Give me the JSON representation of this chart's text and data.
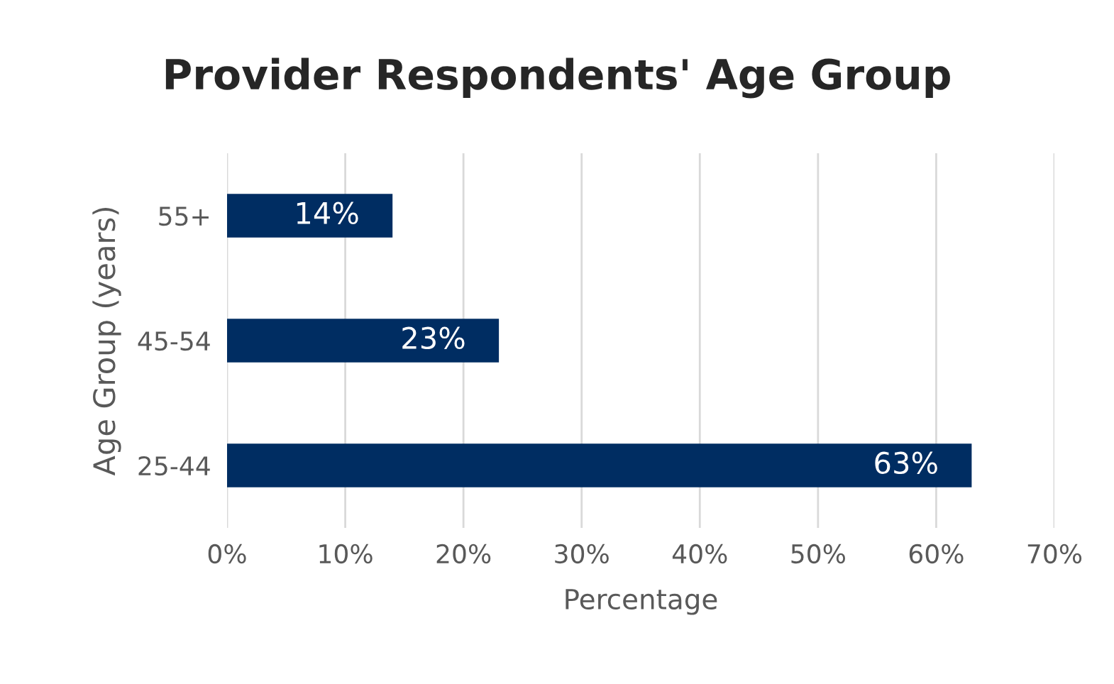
{
  "chart_data": {
    "type": "bar",
    "orientation": "horizontal",
    "title": "Provider Respondents' Age Group",
    "xlabel": "Percentage",
    "ylabel": "Age Group (years)",
    "categories": [
      "55+",
      "45-54",
      "25-44"
    ],
    "values": [
      14,
      23,
      63
    ],
    "value_labels": [
      "14%",
      "23%",
      "63%"
    ],
    "color": "#002d62",
    "xlim": [
      0,
      70
    ],
    "xticks": [
      {
        "value": 0,
        "label": "0%"
      },
      {
        "value": 10,
        "label": "10%"
      },
      {
        "value": 20,
        "label": "20%"
      },
      {
        "value": 30,
        "label": "30%"
      },
      {
        "value": 40,
        "label": "40%"
      },
      {
        "value": 50,
        "label": "50%"
      },
      {
        "value": 60,
        "label": "60%"
      },
      {
        "value": 70,
        "label": "70%"
      }
    ],
    "grid": "x",
    "legend": false
  }
}
